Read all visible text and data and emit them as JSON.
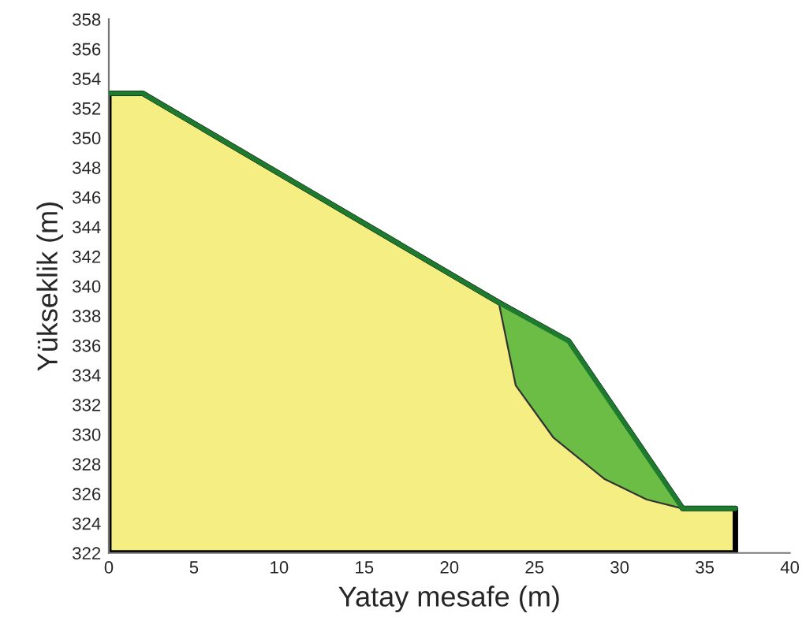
{
  "chart_data": {
    "type": "area",
    "xlabel": "Yatay mesafe (m)",
    "ylabel": "Yükseklik (m)",
    "xlim": [
      0,
      40
    ],
    "ylim": [
      322,
      358
    ],
    "xticks": [
      0,
      5,
      10,
      15,
      20,
      25,
      30,
      35,
      40
    ],
    "yticks": [
      322,
      324,
      326,
      328,
      330,
      332,
      334,
      336,
      338,
      340,
      342,
      344,
      346,
      348,
      350,
      352,
      354,
      356,
      358
    ],
    "grid": false,
    "series": [
      {
        "color": "#f5ee82",
        "x": [
          0,
          0,
          2,
          22.9,
          27,
          33.7,
          36.8,
          36.8
        ],
        "values": [
          322,
          353,
          353,
          338.9,
          336.3,
          325,
          325,
          322
        ]
      },
      {
        "type": "line",
        "color": "#1e7a2e",
        "x": [
          0,
          2,
          22.9,
          27,
          33.7,
          36.8
        ],
        "values": [
          353,
          353,
          338.9,
          336.3,
          325,
          325
        ]
      },
      {
        "type": "area",
        "color": "#6cbd45",
        "x": [
          22.9,
          27,
          33.7,
          31.6,
          29.1,
          26.1,
          23.9,
          22.9
        ],
        "values": [
          338.9,
          336.3,
          325,
          325.6,
          327.0,
          329.8,
          333.3,
          338.9
        ]
      }
    ]
  }
}
